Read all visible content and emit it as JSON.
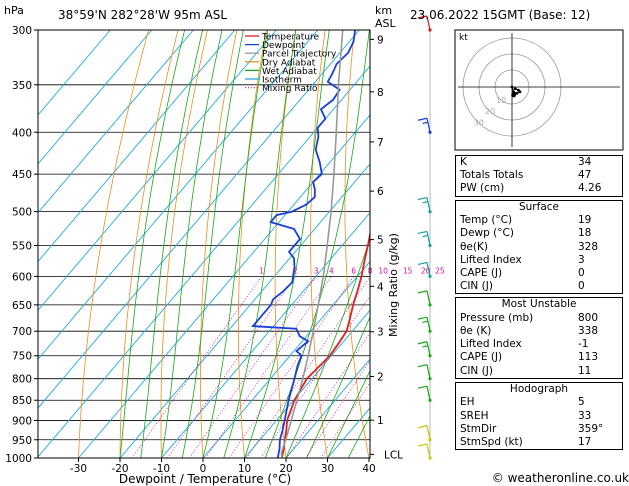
{
  "header": {
    "pressure_unit": "hPa",
    "location": "38°59'N  282°28'W  95m  ASL",
    "height_unit_top": "km",
    "height_unit_bottom": "ASL",
    "datetime": "23.06.2022  15GMT  (Base: 12)"
  },
  "chart_data": {
    "type": "line",
    "xlabel": "Dewpoint / Temperature (°C)",
    "ylabel": "hPa",
    "right_label": "Mixing Ratio (g/kg)",
    "x_ticks": [
      -30,
      -20,
      -10,
      0,
      10,
      20,
      30,
      40
    ],
    "p_ticks": [
      300,
      350,
      400,
      450,
      500,
      550,
      600,
      650,
      700,
      750,
      800,
      850,
      900,
      950,
      1000
    ],
    "height_ticks": [
      {
        "label": "9",
        "p": 308
      },
      {
        "label": "8",
        "p": 357
      },
      {
        "label": "7",
        "p": 411
      },
      {
        "label": "6",
        "p": 472
      },
      {
        "label": "5",
        "p": 541
      },
      {
        "label": "4",
        "p": 617
      },
      {
        "label": "3",
        "p": 701
      },
      {
        "label": "2",
        "p": 795
      },
      {
        "label": "1",
        "p": 899
      },
      {
        "label": "LCL",
        "p": 990
      }
    ],
    "mixing_ratio_labels": [
      "1",
      "2",
      "3",
      "4",
      "6",
      "8",
      "10",
      "15",
      "20",
      "25"
    ],
    "mixing_ratio_values": [
      1,
      2,
      3,
      4,
      6,
      8,
      10,
      15,
      20,
      25
    ],
    "legend": [
      {
        "name": "Temperature",
        "color": "#e02020",
        "style": "solid"
      },
      {
        "name": "Dewpoint",
        "color": "#1a3fd8",
        "style": "solid"
      },
      {
        "name": "Parcel Trajectory",
        "color": "#999999",
        "style": "solid"
      },
      {
        "name": "Dry Adiabat",
        "color": "#e8901c",
        "style": "solid"
      },
      {
        "name": "Wet Adiabat",
        "color": "#18a818",
        "style": "solid"
      },
      {
        "name": "Isotherm",
        "color": "#22a8e0",
        "style": "solid"
      },
      {
        "name": "Mixing Ratio",
        "color": "#d0109a",
        "style": "dotted"
      }
    ],
    "series": [
      {
        "name": "Temperature",
        "points": [
          [
            1000,
            19
          ],
          [
            975,
            17.6
          ],
          [
            950,
            16
          ],
          [
            925,
            14.4
          ],
          [
            900,
            12.6
          ],
          [
            850,
            10.2
          ],
          [
            800,
            8.8
          ],
          [
            750,
            9.6
          ],
          [
            725,
            9.2
          ],
          [
            700,
            8.6
          ],
          [
            675,
            6.8
          ],
          [
            650,
            4.8
          ],
          [
            625,
            3
          ],
          [
            600,
            1
          ],
          [
            575,
            -1.4
          ],
          [
            550,
            -3.8
          ],
          [
            525,
            -6.4
          ],
          [
            500,
            -9.2
          ],
          [
            475,
            -11.8
          ],
          [
            450,
            -13.8
          ],
          [
            425,
            -17
          ],
          [
            400,
            -21.6
          ],
          [
            375,
            -26
          ],
          [
            350,
            -31
          ],
          [
            325,
            -36
          ],
          [
            300,
            -40.8
          ]
        ]
      },
      {
        "name": "Dewpoint",
        "points": [
          [
            1000,
            18
          ],
          [
            975,
            16.6
          ],
          [
            950,
            14.8
          ],
          [
            925,
            13.5
          ],
          [
            900,
            12
          ],
          [
            850,
            8.8
          ],
          [
            800,
            5.8
          ],
          [
            770,
            3.8
          ],
          [
            750,
            2.8
          ],
          [
            740,
            0.6
          ],
          [
            720,
            1.4
          ],
          [
            710,
            -1.6
          ],
          [
            695,
            -4
          ],
          [
            690,
            -15
          ],
          [
            675,
            -15
          ],
          [
            650,
            -15
          ],
          [
            640,
            -15.6
          ],
          [
            625,
            -14.8
          ],
          [
            610,
            -14.5
          ],
          [
            600,
            -15.5
          ],
          [
            585,
            -17
          ],
          [
            570,
            -19
          ],
          [
            560,
            -21.5
          ],
          [
            540,
            -21.5
          ],
          [
            525,
            -25
          ],
          [
            515,
            -32
          ],
          [
            505,
            -32
          ],
          [
            500,
            -29
          ],
          [
            490,
            -27
          ],
          [
            480,
            -26.5
          ],
          [
            470,
            -28
          ],
          [
            460,
            -30
          ],
          [
            450,
            -29.5
          ],
          [
            435,
            -32.5
          ],
          [
            420,
            -36
          ],
          [
            405,
            -38
          ],
          [
            395,
            -40
          ],
          [
            385,
            -40
          ],
          [
            375,
            -43
          ],
          [
            365,
            -42
          ],
          [
            355,
            -42.5
          ],
          [
            347,
            -47
          ],
          [
            340,
            -47.5
          ],
          [
            330,
            -48.5
          ],
          [
            320,
            -48
          ],
          [
            310,
            -49
          ],
          [
            300,
            -51
          ]
        ]
      },
      {
        "name": "Parcel Trajectory",
        "points": [
          [
            1000,
            19
          ],
          [
            985,
            17.8
          ],
          [
            950,
            16.2
          ],
          [
            900,
            13.6
          ],
          [
            850,
            10.8
          ],
          [
            800,
            7.8
          ],
          [
            750,
            4.4
          ],
          [
            700,
            0.6
          ],
          [
            650,
            -3.6
          ],
          [
            600,
            -8.2
          ],
          [
            550,
            -13.6
          ],
          [
            500,
            -19.6
          ],
          [
            450,
            -26.6
          ],
          [
            400,
            -34.6
          ],
          [
            350,
            -43.8
          ],
          [
            300,
            -54
          ]
        ]
      }
    ],
    "wind_barbs": [
      {
        "p": 300,
        "speed_kt": 10,
        "color": "#d81818"
      },
      {
        "p": 400,
        "speed_kt": 15,
        "color": "#1a3fd8"
      },
      {
        "p": 500,
        "speed_kt": 15,
        "color": "#18a0a0"
      },
      {
        "p": 550,
        "speed_kt": 15,
        "color": "#18a0a0"
      },
      {
        "p": 600,
        "speed_kt": 10,
        "color": "#18a0a0"
      },
      {
        "p": 650,
        "speed_kt": 10,
        "color": "#18a818"
      },
      {
        "p": 700,
        "speed_kt": 15,
        "color": "#18a818"
      },
      {
        "p": 750,
        "speed_kt": 15,
        "color": "#18a818"
      },
      {
        "p": 800,
        "speed_kt": 10,
        "color": "#18a818"
      },
      {
        "p": 850,
        "speed_kt": 10,
        "color": "#18a818"
      },
      {
        "p": 950,
        "speed_kt": 10,
        "color": "#c8c800"
      },
      {
        "p": 1000,
        "speed_kt": 10,
        "color": "#c8c800"
      }
    ],
    "hodograph": {
      "label": "kt",
      "ring_labels": [
        "10",
        "20",
        "30"
      ],
      "points": [
        [
          0,
          0
        ],
        [
          1,
          -3
        ],
        [
          3,
          -4
        ],
        [
          5,
          -3
        ],
        [
          4,
          -2
        ],
        [
          2,
          -1
        ]
      ],
      "storm_motion": [
        1,
        -5
      ]
    }
  },
  "indices": {
    "rows": [
      {
        "label": "K",
        "value": "34"
      },
      {
        "label": "Totals Totals",
        "value": "47"
      },
      {
        "label": "PW (cm)",
        "value": "4.26"
      }
    ]
  },
  "surface": {
    "title": "Surface",
    "rows": [
      {
        "label": "Temp (°C)",
        "value": "19"
      },
      {
        "label": "Dewp (°C)",
        "value": "18"
      },
      {
        "label": "θe(K)",
        "value": "328"
      },
      {
        "label": "Lifted Index",
        "value": "3"
      },
      {
        "label": "CAPE (J)",
        "value": "0"
      },
      {
        "label": "CIN (J)",
        "value": "0"
      }
    ]
  },
  "most_unstable": {
    "title": "Most Unstable",
    "rows": [
      {
        "label": "Pressure (mb)",
        "value": "800"
      },
      {
        "label": "θe (K)",
        "value": "338"
      },
      {
        "label": "Lifted Index",
        "value": "-1"
      },
      {
        "label": "CAPE (J)",
        "value": "113"
      },
      {
        "label": "CIN (J)",
        "value": "11"
      }
    ]
  },
  "hodograph_box": {
    "title": "Hodograph",
    "rows": [
      {
        "label": "EH",
        "value": "5"
      },
      {
        "label": "SREH",
        "value": "33"
      },
      {
        "label": "StmDir",
        "value": "359°"
      },
      {
        "label": "StmSpd (kt)",
        "value": "17"
      }
    ]
  },
  "footer": {
    "copyright": "© weatheronline.co.uk"
  }
}
